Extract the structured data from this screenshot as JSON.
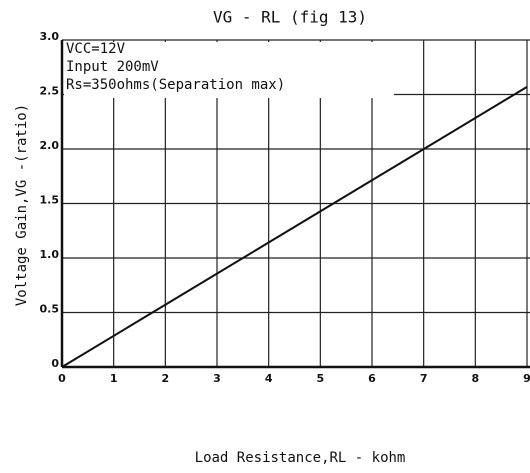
{
  "chart_data": {
    "type": "line",
    "title": "VG - RL (fig 13)",
    "annotations": [
      "VCC=12V",
      "Input 200mV",
      "Rs=350ohms(Separation max)"
    ],
    "x_label": "Load Resistance,RL - kohm",
    "y_label": "Voltage Gain,VG -(ratio)",
    "x": [
      0,
      9
    ],
    "series": [
      {
        "color": "#111111",
        "values": [
          0,
          2.57
        ]
      }
    ],
    "xlim": [
      0,
      9
    ],
    "xticks": [
      0,
      1,
      2,
      3,
      4,
      5,
      6,
      7,
      8,
      9
    ],
    "ylim": [
      0,
      3
    ],
    "yticks": [
      0,
      {
        "value": 0.5,
        "label": "0.5"
      },
      {
        "value": 1,
        "label": "1.0"
      },
      {
        "value": 1.5,
        "label": "1.5"
      },
      {
        "value": 2,
        "label": "2.0"
      },
      {
        "value": 2.5,
        "label": "2.5"
      },
      {
        "value": 3,
        "label": "3.0"
      }
    ],
    "grid": true
  }
}
